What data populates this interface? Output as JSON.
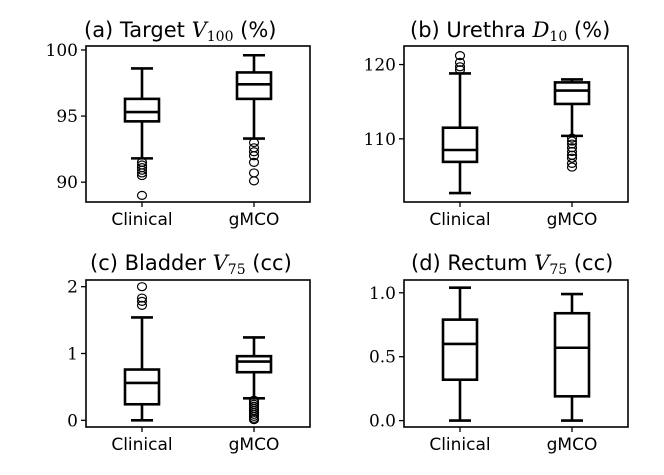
{
  "chart_data": [
    {
      "type": "box",
      "title": {
        "prefix": "(a) Target ",
        "var": "V",
        "sub": "100",
        "suffix": " (%)"
      },
      "categories": [
        "Clinical",
        "gMCO"
      ],
      "ylim": [
        88.5,
        100.3
      ],
      "yticks": [
        90,
        95,
        100
      ],
      "boxes": [
        {
          "name": "Clinical",
          "whislo": 91.8,
          "q1": 94.6,
          "med": 95.3,
          "q3": 96.3,
          "whishi": 98.6,
          "fliers": [
            91.5,
            91.3,
            91.1,
            90.9,
            90.7,
            90.5,
            89.0
          ]
        },
        {
          "name": "gMCO",
          "whislo": 93.3,
          "q1": 96.3,
          "med": 97.4,
          "q3": 98.3,
          "whishi": 99.6,
          "fliers": [
            93.0,
            92.6,
            92.3,
            92.0,
            91.5,
            90.7,
            90.1
          ]
        }
      ]
    },
    {
      "type": "box",
      "title": {
        "prefix": "(b) Urethra ",
        "var": "D",
        "sub": "10",
        "suffix": " (%)"
      },
      "categories": [
        "Clinical",
        "gMCO"
      ],
      "ylim": [
        101.5,
        122.5
      ],
      "yticks": [
        110,
        120
      ],
      "boxes": [
        {
          "name": "Clinical",
          "whislo": 102.7,
          "q1": 106.9,
          "med": 108.5,
          "q3": 111.5,
          "whishi": 118.8,
          "fliers": [
            119.3,
            119.7,
            120.3,
            121.2
          ]
        },
        {
          "name": "gMCO",
          "whislo": 110.4,
          "q1": 114.7,
          "med": 116.5,
          "q3": 117.6,
          "whishi": 118.0,
          "fliers": [
            110.1,
            109.7,
            109.3,
            108.8,
            108.3,
            107.8,
            107.4,
            106.7,
            106.2
          ]
        }
      ]
    },
    {
      "type": "box",
      "title": {
        "prefix": "(c) Bladder ",
        "var": "V",
        "sub": "75",
        "suffix": " (cc)"
      },
      "categories": [
        "Clinical",
        "gMCO"
      ],
      "ylim": [
        -0.1,
        2.1
      ],
      "yticks": [
        0,
        1,
        2
      ],
      "boxes": [
        {
          "name": "Clinical",
          "whislo": 0.0,
          "q1": 0.24,
          "med": 0.56,
          "q3": 0.76,
          "whishi": 1.54,
          "fliers": [
            1.72,
            1.78,
            1.83,
            2.0
          ]
        },
        {
          "name": "gMCO",
          "whislo": 0.33,
          "q1": 0.72,
          "med": 0.88,
          "q3": 0.96,
          "whishi": 1.24,
          "fliers": [
            0.3,
            0.27,
            0.24,
            0.21,
            0.18,
            0.15,
            0.12,
            0.09,
            0.06,
            0.03,
            0.01
          ]
        }
      ]
    },
    {
      "type": "box",
      "title": {
        "prefix": "(d) Rectum ",
        "var": "V",
        "sub": "75",
        "suffix": " (cc)"
      },
      "categories": [
        "Clinical",
        "gMCO"
      ],
      "ylim": [
        -0.05,
        1.1
      ],
      "yticks": [
        0.0,
        0.5,
        1.0
      ],
      "boxes": [
        {
          "name": "Clinical",
          "whislo": 0.0,
          "q1": 0.32,
          "med": 0.6,
          "q3": 0.79,
          "whishi": 1.04,
          "fliers": []
        },
        {
          "name": "gMCO",
          "whislo": 0.0,
          "q1": 0.19,
          "med": 0.57,
          "q3": 0.84,
          "whishi": 0.99,
          "fliers": []
        }
      ]
    }
  ]
}
